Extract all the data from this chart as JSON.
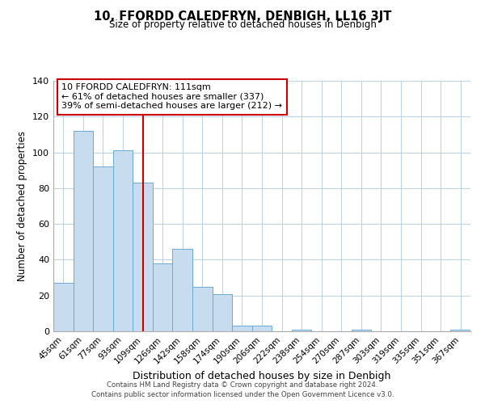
{
  "title": "10, FFORDD CALEDFRYN, DENBIGH, LL16 3JT",
  "subtitle": "Size of property relative to detached houses in Denbigh",
  "xlabel": "Distribution of detached houses by size in Denbigh",
  "ylabel": "Number of detached properties",
  "bar_labels": [
    "45sqm",
    "61sqm",
    "77sqm",
    "93sqm",
    "109sqm",
    "126sqm",
    "142sqm",
    "158sqm",
    "174sqm",
    "190sqm",
    "206sqm",
    "222sqm",
    "238sqm",
    "254sqm",
    "270sqm",
    "287sqm",
    "303sqm",
    "319sqm",
    "335sqm",
    "351sqm",
    "367sqm"
  ],
  "bar_values": [
    27,
    112,
    92,
    101,
    83,
    38,
    46,
    25,
    21,
    3,
    3,
    0,
    1,
    0,
    0,
    1,
    0,
    0,
    0,
    0,
    1
  ],
  "bar_color": "#c8dcf0",
  "bar_edge_color": "#6aaad4",
  "vline_color": "#cc0000",
  "vline_pos": 4.0,
  "ylim": [
    0,
    140
  ],
  "yticks": [
    0,
    20,
    40,
    60,
    80,
    100,
    120,
    140
  ],
  "annotation_box_text": "10 FFORDD CALEDFRYN: 111sqm\n← 61% of detached houses are smaller (337)\n39% of semi-detached houses are larger (212) →",
  "footer_line1": "Contains HM Land Registry data © Crown copyright and database right 2024.",
  "footer_line2": "Contains public sector information licensed under the Open Government Licence v3.0.",
  "background_color": "#ffffff",
  "grid_color": "#c0d4e8"
}
